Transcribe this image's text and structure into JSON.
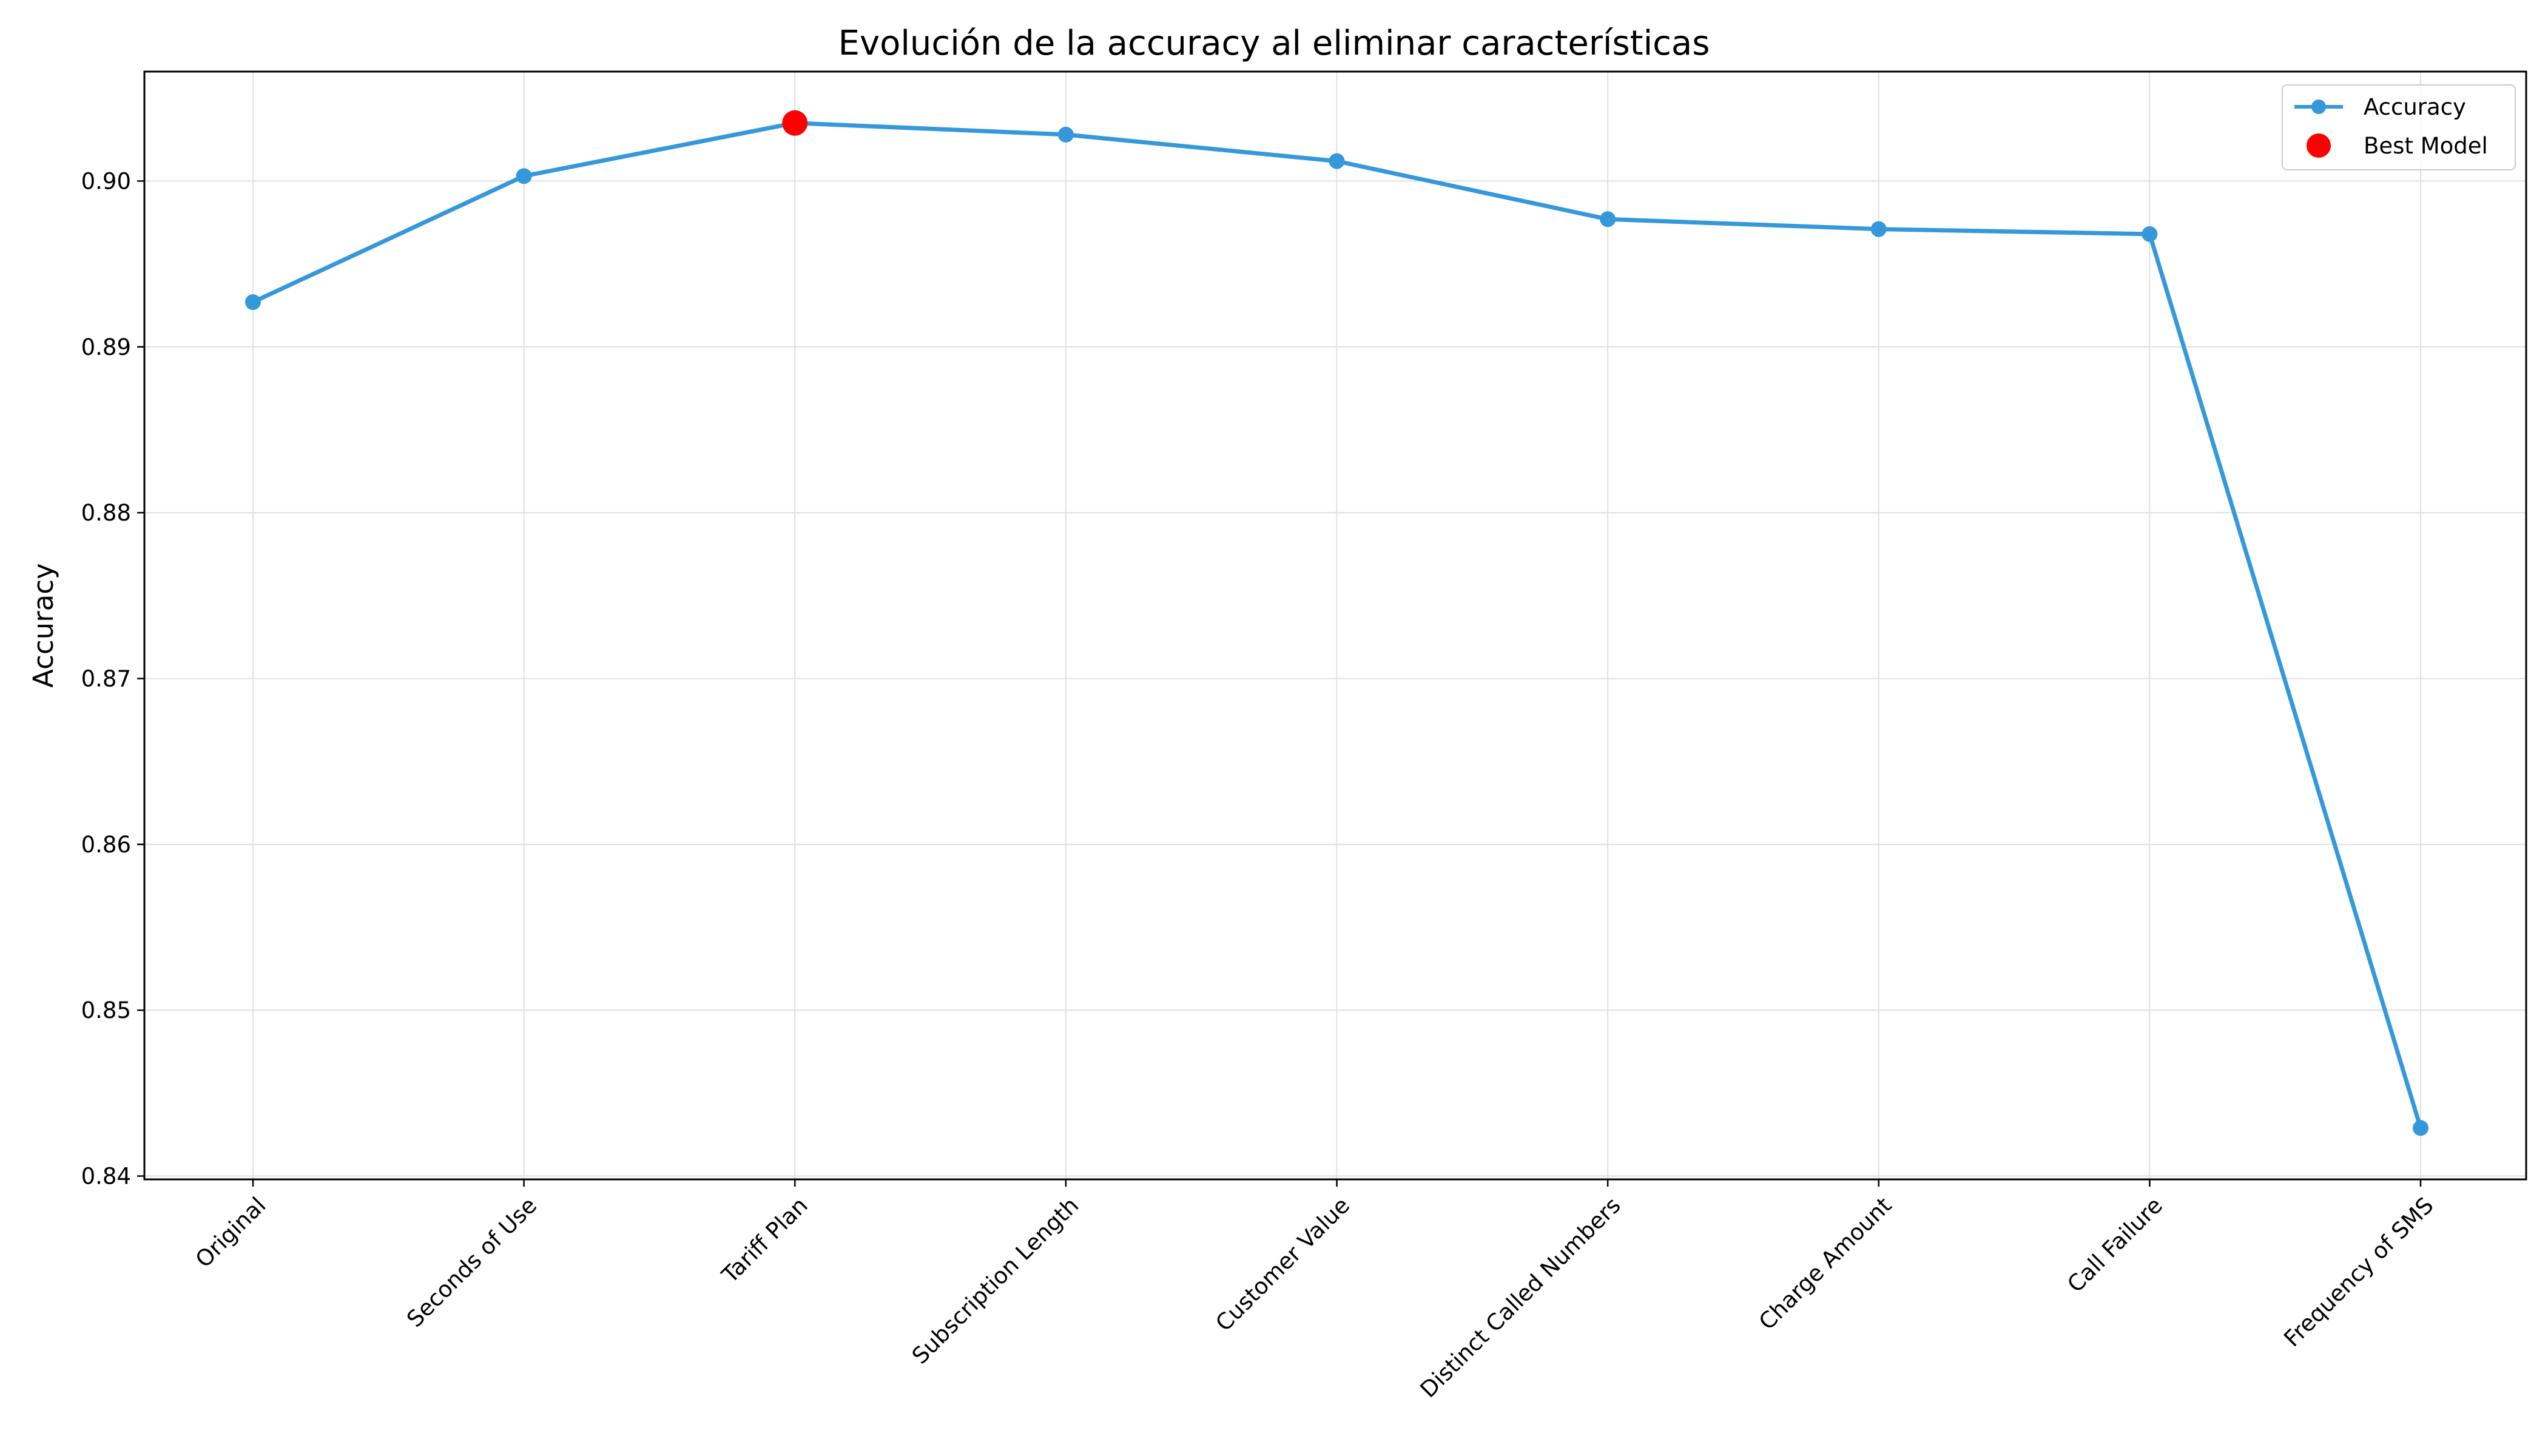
{
  "chart_data": {
    "type": "line",
    "title": "Evolución de la accuracy al eliminar características",
    "xlabel": "",
    "ylabel": "Accuracy",
    "categories": [
      "Original",
      "Seconds of Use",
      "Tariff Plan",
      "Subscription  Length",
      "Customer Value",
      "Distinct Called Numbers",
      "Charge  Amount",
      "Call  Failure",
      "Frequency of SMS"
    ],
    "series": [
      {
        "name": "Accuracy",
        "values": [
          0.8927,
          0.9003,
          0.9035,
          0.9028,
          0.9012,
          0.8977,
          0.8971,
          0.8968,
          0.8429
        ],
        "color": "#3498db"
      }
    ],
    "best_model": {
      "name": "Best Model",
      "category": "Tariff Plan",
      "value": 0.9035,
      "color": "#ff0000"
    },
    "ylim": [
      0.8398,
      0.9066
    ],
    "yticks": [
      0.84,
      0.85,
      0.86,
      0.87,
      0.88,
      0.89,
      0.9
    ],
    "ytick_labels": [
      "0.84",
      "0.85",
      "0.86",
      "0.87",
      "0.88",
      "0.89",
      "0.90"
    ],
    "grid": true,
    "legend_position": "top-right"
  }
}
